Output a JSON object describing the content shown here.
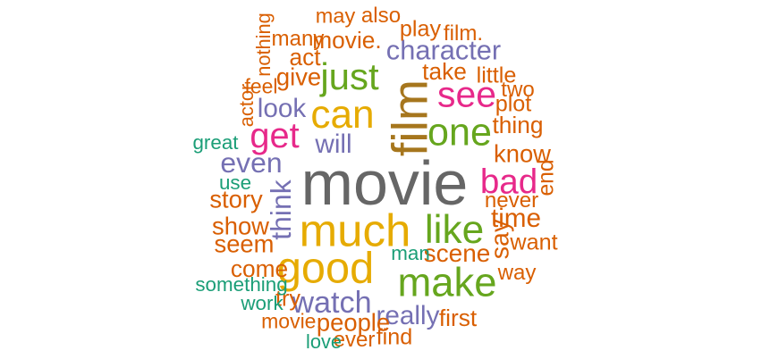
{
  "words": [
    {
      "text": "movie",
      "weight": 1.0,
      "color": "#666666",
      "rotated": false
    },
    {
      "text": "film",
      "weight": 0.74,
      "color": "#A6761D",
      "rotated": true
    },
    {
      "text": "much",
      "weight": 0.66,
      "color": "#E6AB02",
      "rotated": false
    },
    {
      "text": "good",
      "weight": 0.62,
      "color": "#E6AB02",
      "rotated": false
    },
    {
      "text": "make",
      "weight": 0.56,
      "color": "#66A61E",
      "rotated": false
    },
    {
      "text": "like",
      "weight": 0.54,
      "color": "#66A61E",
      "rotated": false
    },
    {
      "text": "can",
      "weight": 0.54,
      "color": "#E6AB02",
      "rotated": false
    },
    {
      "text": "one",
      "weight": 0.52,
      "color": "#66A61E",
      "rotated": false
    },
    {
      "text": "just",
      "weight": 0.5,
      "color": "#66A61E",
      "rotated": false
    },
    {
      "text": "see",
      "weight": 0.48,
      "color": "#E7298A",
      "rotated": false
    },
    {
      "text": "get",
      "weight": 0.46,
      "color": "#E7298A",
      "rotated": false
    },
    {
      "text": "bad",
      "weight": 0.44,
      "color": "#E7298A",
      "rotated": false
    },
    {
      "text": "watch",
      "weight": 0.36,
      "color": "#7570B3",
      "rotated": false
    },
    {
      "text": "think",
      "weight": 0.32,
      "color": "#7570B3",
      "rotated": true
    },
    {
      "text": "even",
      "weight": 0.32,
      "color": "#7570B3",
      "rotated": false
    },
    {
      "text": "character",
      "weight": 0.3,
      "color": "#7570B3",
      "rotated": false
    },
    {
      "text": "really",
      "weight": 0.28,
      "color": "#7570B3",
      "rotated": false
    },
    {
      "text": "will",
      "weight": 0.28,
      "color": "#7570B3",
      "rotated": false
    },
    {
      "text": "look",
      "weight": 0.28,
      "color": "#7570B3",
      "rotated": false
    },
    {
      "text": "time",
      "weight": 0.28,
      "color": "#D95F02",
      "rotated": false
    },
    {
      "text": "say",
      "weight": 0.26,
      "color": "#D95F02",
      "rotated": true
    },
    {
      "text": "scene",
      "weight": 0.25,
      "color": "#D95F02",
      "rotated": false
    },
    {
      "text": "people",
      "weight": 0.24,
      "color": "#D95F02",
      "rotated": false
    },
    {
      "text": "know",
      "weight": 0.24,
      "color": "#D95F02",
      "rotated": false
    },
    {
      "text": "story",
      "weight": 0.24,
      "color": "#D95F02",
      "rotated": false
    },
    {
      "text": "show",
      "weight": 0.24,
      "color": "#D95F02",
      "rotated": false
    },
    {
      "text": "seem",
      "weight": 0.24,
      "color": "#D95F02",
      "rotated": false
    },
    {
      "text": "give",
      "weight": 0.24,
      "color": "#D95F02",
      "rotated": false
    },
    {
      "text": "movie.",
      "weight": 0.22,
      "color": "#D95F02",
      "rotated": false
    },
    {
      "text": "thing",
      "weight": 0.22,
      "color": "#D95F02",
      "rotated": false
    },
    {
      "text": "take",
      "weight": 0.22,
      "color": "#D95F02",
      "rotated": false
    },
    {
      "text": "come",
      "weight": 0.22,
      "color": "#D95F02",
      "rotated": false
    },
    {
      "text": "first",
      "weight": 0.22,
      "color": "#D95F02",
      "rotated": false
    },
    {
      "text": "act",
      "weight": 0.22,
      "color": "#D95F02",
      "rotated": false
    },
    {
      "text": "play",
      "weight": 0.2,
      "color": "#D95F02",
      "rotated": false
    },
    {
      "text": "want",
      "weight": 0.2,
      "color": "#D95F02",
      "rotated": false
    },
    {
      "text": "little",
      "weight": 0.2,
      "color": "#D95F02",
      "rotated": false
    },
    {
      "text": "plot",
      "weight": 0.2,
      "color": "#D95F02",
      "rotated": false
    },
    {
      "text": "try",
      "weight": 0.2,
      "color": "#D95F02",
      "rotated": false
    },
    {
      "text": "find",
      "weight": 0.2,
      "color": "#D95F02",
      "rotated": false
    },
    {
      "text": "end",
      "weight": 0.19,
      "color": "#D95F02",
      "rotated": true
    },
    {
      "text": "many",
      "weight": 0.18,
      "color": "#D95F02",
      "rotated": false
    },
    {
      "text": "film.",
      "weight": 0.18,
      "color": "#D95F02",
      "rotated": false
    },
    {
      "text": "two",
      "weight": 0.18,
      "color": "#D95F02",
      "rotated": false
    },
    {
      "text": "never",
      "weight": 0.18,
      "color": "#D95F02",
      "rotated": false
    },
    {
      "text": "way",
      "weight": 0.18,
      "color": "#D95F02",
      "rotated": false
    },
    {
      "text": "ever",
      "weight": 0.18,
      "color": "#D95F02",
      "rotated": false
    },
    {
      "text": "also",
      "weight": 0.18,
      "color": "#D95F02",
      "rotated": false
    },
    {
      "text": "may",
      "weight": 0.17,
      "color": "#D95F02",
      "rotated": false
    },
    {
      "text": "feel",
      "weight": 0.16,
      "color": "#D95F02",
      "rotated": false
    },
    {
      "text": "movie,",
      "weight": 0.16,
      "color": "#D95F02",
      "rotated": false
    },
    {
      "text": "man",
      "weight": 0.15,
      "color": "#1B9E77",
      "rotated": false
    },
    {
      "text": "great",
      "weight": 0.15,
      "color": "#1B9E77",
      "rotated": false
    },
    {
      "text": "something",
      "weight": 0.15,
      "color": "#1B9E77",
      "rotated": false
    },
    {
      "text": "work",
      "weight": 0.15,
      "color": "#1B9E77",
      "rotated": false
    },
    {
      "text": "use",
      "weight": 0.15,
      "color": "#1B9E77",
      "rotated": false
    },
    {
      "text": "love",
      "weight": 0.14,
      "color": "#1B9E77",
      "rotated": false
    },
    {
      "text": "actor",
      "weight": 0.14,
      "color": "#D95F02",
      "rotated": true
    },
    {
      "text": "nothing",
      "weight": 0.14,
      "color": "#D95F02",
      "rotated": true
    }
  ]
}
